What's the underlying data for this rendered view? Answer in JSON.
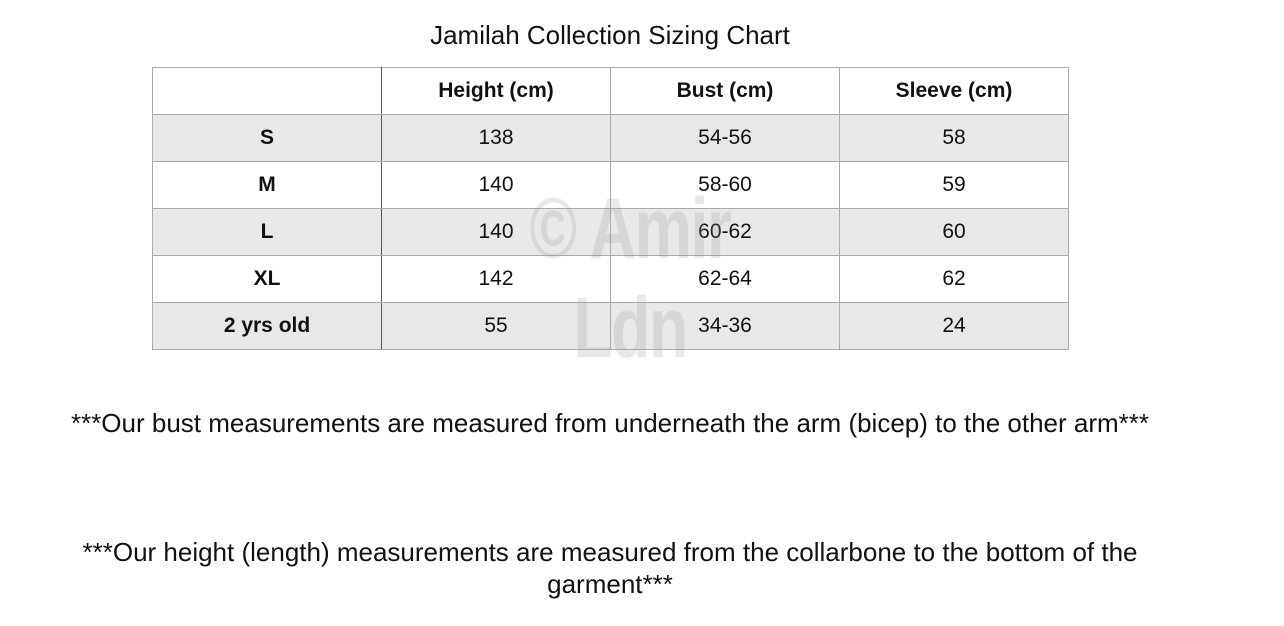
{
  "header": {
    "title": "Jamilah Collection Sizing Chart"
  },
  "table": {
    "columns": [
      "",
      "Height (cm)",
      "Bust (cm)",
      "Sleeve (cm)"
    ],
    "rows": [
      [
        "S",
        "138",
        "54-56",
        "58"
      ],
      [
        "M",
        "140",
        "58-60",
        "59"
      ],
      [
        "L",
        "140",
        "60-62",
        "60"
      ],
      [
        "XL",
        "142",
        "62-64",
        "62"
      ],
      [
        "2 yrs old",
        "55",
        "34-36",
        "24"
      ]
    ]
  },
  "watermark": "© Amir Ldn",
  "notes": [
    "***Our bust measurements are measured from underneath the arm (bicep) to the other arm***",
    "***Our height (length) measurements are measured from the collarbone to the bottom of the garment***"
  ]
}
